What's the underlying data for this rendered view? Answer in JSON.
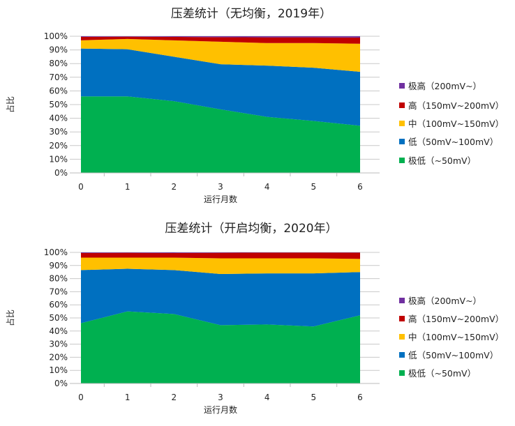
{
  "chart_data": [
    {
      "type": "area",
      "stacked": "percent",
      "title": "压差统计（无均衡，2019年）",
      "xlabel": "运行月数",
      "ylabel": "占比",
      "x": [
        "0",
        "1",
        "2",
        "3",
        "4",
        "5",
        "6"
      ],
      "ylim": [
        0,
        100
      ],
      "yticks": [
        "0%",
        "10%",
        "20%",
        "30%",
        "40%",
        "50%",
        "60%",
        "70%",
        "80%",
        "90%",
        "100%"
      ],
      "grid": true,
      "legend_position": "right",
      "series": [
        {
          "name": "极低（~50mV）",
          "color": "#00B050",
          "values": [
            56,
            56,
            52.5,
            46.5,
            41,
            38,
            34.5
          ]
        },
        {
          "name": "低（50mV~100mV）",
          "color": "#0070C0",
          "values": [
            35,
            34.5,
            32.5,
            33,
            37.5,
            39,
            39.5
          ]
        },
        {
          "name": "中（100mV~150mV）",
          "color": "#FFC000",
          "values": [
            6,
            7.5,
            12,
            16.5,
            16.5,
            18,
            20.5
          ]
        },
        {
          "name": "高（150mV~200mV）",
          "color": "#C00000",
          "values": [
            2.5,
            1.7,
            2.5,
            3.3,
            4.2,
            4.2,
            4.5
          ]
        },
        {
          "name": "极高（200mV~）",
          "color": "#7030A0",
          "values": [
            0.5,
            0.3,
            0.5,
            0.7,
            0.8,
            0.8,
            1.0
          ]
        }
      ]
    },
    {
      "type": "area",
      "stacked": "percent",
      "title": "压差统计（开启均衡，2020年）",
      "xlabel": "运行月数",
      "ylabel": "占比",
      "x": [
        "0",
        "1",
        "2",
        "3",
        "4",
        "5",
        "6"
      ],
      "ylim": [
        0,
        100
      ],
      "yticks": [
        "0%",
        "10%",
        "20%",
        "30%",
        "40%",
        "50%",
        "60%",
        "70%",
        "80%",
        "90%",
        "100%"
      ],
      "grid": true,
      "legend_position": "right",
      "series": [
        {
          "name": "极低（~50mV）",
          "color": "#00B050",
          "values": [
            46,
            55,
            53,
            44.5,
            45,
            43.5,
            52
          ]
        },
        {
          "name": "低（50mV~100mV）",
          "color": "#0070C0",
          "values": [
            40.5,
            32.5,
            33.5,
            39,
            39,
            40.5,
            33
          ]
        },
        {
          "name": "中（100mV~150mV）",
          "color": "#FFC000",
          "values": [
            9.5,
            8.5,
            9.5,
            12,
            11.5,
            11.5,
            10
          ]
        },
        {
          "name": "高（150mV~200mV）",
          "color": "#C00000",
          "values": [
            3.5,
            3.7,
            3.5,
            4.2,
            4.3,
            4.4,
            4.8
          ]
        },
        {
          "name": "极高（200mV~）",
          "color": "#7030A0",
          "values": [
            0.5,
            0.3,
            0.5,
            0.3,
            0.2,
            0.2,
            0.2
          ]
        }
      ]
    }
  ]
}
